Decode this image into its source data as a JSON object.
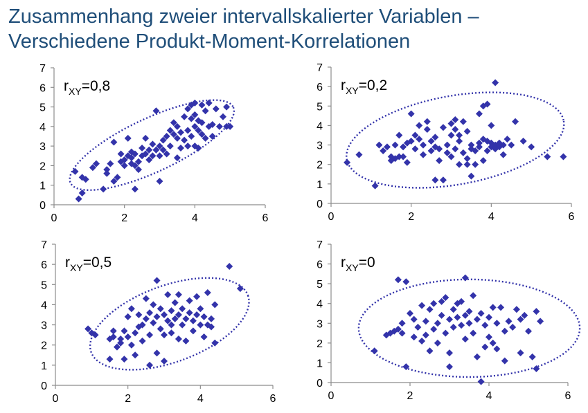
{
  "title": {
    "line1": "Zusammenhang zweier intervallskalierter Variablen –",
    "line2": "Verschiedene Produkt-Moment-Korrelationen"
  },
  "colors": {
    "marker": "#3333aa",
    "ellipse": "#3333aa",
    "title": "#1f4e79"
  },
  "chart_data": [
    {
      "type": "scatter",
      "label_prefix": "r",
      "label_sub": "XY",
      "label_value": "=0,8",
      "xlim": [
        0,
        6
      ],
      "ylim": [
        0,
        7
      ],
      "xticks": [
        0,
        2,
        4,
        6
      ],
      "yticks": [
        0,
        1,
        2,
        3,
        4,
        5,
        6,
        7
      ],
      "points": [
        [
          0.7,
          0.3
        ],
        [
          0.8,
          0.6
        ],
        [
          0.6,
          1.7
        ],
        [
          0.8,
          1.4
        ],
        [
          0.9,
          1.3
        ],
        [
          1.1,
          1.9
        ],
        [
          1.2,
          2.1
        ],
        [
          1.4,
          0.8
        ],
        [
          1.5,
          1.6
        ],
        [
          1.5,
          1.8
        ],
        [
          1.6,
          2.1
        ],
        [
          1.7,
          1.2
        ],
        [
          1.7,
          3.2
        ],
        [
          1.8,
          1.4
        ],
        [
          1.9,
          2.2
        ],
        [
          1.9,
          2.6
        ],
        [
          2.0,
          2.0
        ],
        [
          2.0,
          2.3
        ],
        [
          2.1,
          3.4
        ],
        [
          2.1,
          2.5
        ],
        [
          2.2,
          2.1
        ],
        [
          2.2,
          2.4
        ],
        [
          2.2,
          2.7
        ],
        [
          2.3,
          0.8
        ],
        [
          2.3,
          2.0
        ],
        [
          2.3,
          2.6
        ],
        [
          2.4,
          1.8
        ],
        [
          2.4,
          2.2
        ],
        [
          2.5,
          2.5
        ],
        [
          2.5,
          2.9
        ],
        [
          2.6,
          2.6
        ],
        [
          2.6,
          3.4
        ],
        [
          2.7,
          2.3
        ],
        [
          2.7,
          2.8
        ],
        [
          2.8,
          3.1
        ],
        [
          2.8,
          2.5
        ],
        [
          2.9,
          2.8
        ],
        [
          2.9,
          4.8
        ],
        [
          3.0,
          2.5
        ],
        [
          3.0,
          1.2
        ],
        [
          3.0,
          3.0
        ],
        [
          3.1,
          2.8
        ],
        [
          3.1,
          3.3
        ],
        [
          3.2,
          2.6
        ],
        [
          3.2,
          3.5
        ],
        [
          3.3,
          3.0
        ],
        [
          3.3,
          3.8
        ],
        [
          3.4,
          3.6
        ],
        [
          3.4,
          4.2
        ],
        [
          3.5,
          3.4
        ],
        [
          3.5,
          4.0
        ],
        [
          3.5,
          2.4
        ],
        [
          3.6,
          3.7
        ],
        [
          3.6,
          2.9
        ],
        [
          3.7,
          3.3
        ],
        [
          3.7,
          4.5
        ],
        [
          3.8,
          3.0
        ],
        [
          3.8,
          3.8
        ],
        [
          3.8,
          4.9
        ],
        [
          3.9,
          4.4
        ],
        [
          3.9,
          3.5
        ],
        [
          3.9,
          5.1
        ],
        [
          4.0,
          4.0
        ],
        [
          4.0,
          3.0
        ],
        [
          4.0,
          4.6
        ],
        [
          4.0,
          5.2
        ],
        [
          4.1,
          3.8
        ],
        [
          4.1,
          4.3
        ],
        [
          4.1,
          2.9
        ],
        [
          4.2,
          3.6
        ],
        [
          4.2,
          4.2
        ],
        [
          4.2,
          5.1
        ],
        [
          4.3,
          3.4
        ],
        [
          4.3,
          4.8
        ],
        [
          4.4,
          4.0
        ],
        [
          4.4,
          5.2
        ],
        [
          4.5,
          4.1
        ],
        [
          4.5,
          3.5
        ],
        [
          4.6,
          4.9
        ],
        [
          4.7,
          4.0
        ],
        [
          4.8,
          4.5
        ],
        [
          4.9,
          4.0
        ],
        [
          4.9,
          5.0
        ],
        [
          5.0,
          4.0
        ]
      ],
      "ellipse": {
        "cx": 2.78,
        "cy": 3.05,
        "rx": 2.55,
        "ry": 0.72,
        "angle_deg": -25
      }
    },
    {
      "type": "scatter",
      "label_prefix": "r",
      "label_sub": "XY",
      "label_value": "=0,2",
      "xlim": [
        0,
        6
      ],
      "ylim": [
        0,
        7
      ],
      "xticks": [
        0,
        2,
        4,
        6
      ],
      "yticks": [
        0,
        1,
        2,
        3,
        4,
        5,
        6,
        7
      ],
      "points": [
        [
          0.4,
          2.1
        ],
        [
          0.7,
          2.5
        ],
        [
          1.1,
          0.9
        ],
        [
          1.2,
          3.0
        ],
        [
          1.3,
          2.7
        ],
        [
          1.4,
          2.9
        ],
        [
          1.5,
          2.4
        ],
        [
          1.5,
          2.2
        ],
        [
          1.6,
          3.0
        ],
        [
          1.6,
          2.3
        ],
        [
          1.7,
          2.4
        ],
        [
          1.7,
          3.5
        ],
        [
          1.8,
          2.9
        ],
        [
          1.8,
          2.4
        ],
        [
          1.9,
          3.1
        ],
        [
          1.9,
          2.1
        ],
        [
          2.0,
          3.2
        ],
        [
          2.0,
          4.6
        ],
        [
          2.1,
          2.8
        ],
        [
          2.1,
          3.5
        ],
        [
          2.2,
          3.3
        ],
        [
          2.2,
          4.0
        ],
        [
          2.3,
          3.0
        ],
        [
          2.3,
          2.5
        ],
        [
          2.4,
          3.8
        ],
        [
          2.4,
          4.2
        ],
        [
          2.5,
          3.2
        ],
        [
          2.5,
          2.7
        ],
        [
          2.6,
          2.9
        ],
        [
          2.6,
          1.2
        ],
        [
          2.6,
          3.4
        ],
        [
          2.7,
          2.2
        ],
        [
          2.7,
          2.8
        ],
        [
          2.8,
          3.9
        ],
        [
          2.8,
          1.2
        ],
        [
          2.9,
          3.0
        ],
        [
          2.9,
          2.6
        ],
        [
          3.0,
          4.1
        ],
        [
          3.0,
          2.4
        ],
        [
          3.0,
          3.5
        ],
        [
          3.1,
          3.8
        ],
        [
          3.1,
          2.8
        ],
        [
          3.1,
          4.3
        ],
        [
          3.2,
          3.2
        ],
        [
          3.2,
          2.0
        ],
        [
          3.2,
          3.5
        ],
        [
          3.3,
          4.2
        ],
        [
          3.3,
          2.6
        ],
        [
          3.4,
          2.3
        ],
        [
          3.4,
          2.0
        ],
        [
          3.4,
          3.7
        ],
        [
          3.5,
          3.0
        ],
        [
          3.5,
          1.4
        ],
        [
          3.5,
          2.8
        ],
        [
          3.6,
          2.7
        ],
        [
          3.6,
          2.0
        ],
        [
          3.7,
          3.1
        ],
        [
          3.7,
          2.9
        ],
        [
          3.7,
          4.6
        ],
        [
          3.8,
          3.3
        ],
        [
          3.8,
          5.0
        ],
        [
          3.8,
          2.2
        ],
        [
          3.9,
          5.1
        ],
        [
          3.9,
          3.2
        ],
        [
          3.9,
          2.7
        ],
        [
          4.0,
          3.1
        ],
        [
          4.0,
          4.0
        ],
        [
          4.0,
          2.9
        ],
        [
          4.1,
          2.8
        ],
        [
          4.1,
          6.2
        ],
        [
          4.1,
          3.0
        ],
        [
          4.2,
          3.1
        ],
        [
          4.2,
          2.9
        ],
        [
          4.3,
          2.5
        ],
        [
          4.3,
          3.0
        ],
        [
          4.4,
          3.3
        ],
        [
          4.5,
          3.0
        ],
        [
          4.6,
          4.2
        ],
        [
          4.8,
          3.2
        ],
        [
          5.0,
          2.9
        ],
        [
          5.4,
          2.4
        ],
        [
          5.8,
          2.4
        ]
      ],
      "ellipse": {
        "cx": 3.1,
        "cy": 3.25,
        "rx": 2.75,
        "ry": 1.2,
        "angle_deg": -10
      }
    },
    {
      "type": "scatter",
      "label_prefix": "r",
      "label_sub": "XY",
      "label_value": "=0,5",
      "xlim": [
        0,
        6
      ],
      "ylim": [
        0,
        7
      ],
      "xticks": [
        0,
        2,
        4,
        6
      ],
      "yticks": [
        0,
        1,
        2,
        3,
        4,
        5,
        6,
        7
      ],
      "points": [
        [
          0.9,
          2.8
        ],
        [
          1.0,
          2.6
        ],
        [
          1.1,
          2.5
        ],
        [
          1.5,
          2.3
        ],
        [
          1.5,
          1.3
        ],
        [
          1.6,
          2.4
        ],
        [
          1.6,
          2.7
        ],
        [
          1.7,
          1.9
        ],
        [
          1.8,
          2.3
        ],
        [
          1.8,
          2.1
        ],
        [
          1.9,
          1.3
        ],
        [
          1.9,
          2.7
        ],
        [
          2.0,
          2.4
        ],
        [
          2.0,
          3.4
        ],
        [
          2.1,
          2.0
        ],
        [
          2.1,
          3.8
        ],
        [
          2.2,
          2.6
        ],
        [
          2.2,
          1.5
        ],
        [
          2.3,
          2.9
        ],
        [
          2.3,
          3.5
        ],
        [
          2.4,
          3.0
        ],
        [
          2.4,
          2.2
        ],
        [
          2.5,
          3.3
        ],
        [
          2.5,
          4.3
        ],
        [
          2.6,
          1.0
        ],
        [
          2.6,
          2.5
        ],
        [
          2.6,
          3.6
        ],
        [
          2.7,
          3.1
        ],
        [
          2.7,
          4.0
        ],
        [
          2.8,
          1.6
        ],
        [
          2.8,
          5.2
        ],
        [
          2.8,
          3.4
        ],
        [
          2.9,
          2.8
        ],
        [
          2.9,
          3.8
        ],
        [
          3.0,
          1.2
        ],
        [
          3.0,
          3.5
        ],
        [
          3.0,
          2.5
        ],
        [
          3.1,
          3.2
        ],
        [
          3.1,
          4.5
        ],
        [
          3.2,
          3.0
        ],
        [
          3.2,
          2.6
        ],
        [
          3.2,
          3.7
        ],
        [
          3.3,
          3.3
        ],
        [
          3.3,
          4.1
        ],
        [
          3.4,
          2.3
        ],
        [
          3.4,
          3.5
        ],
        [
          3.4,
          4.5
        ],
        [
          3.5,
          3.0
        ],
        [
          3.5,
          3.8
        ],
        [
          3.6,
          3.3
        ],
        [
          3.6,
          2.2
        ],
        [
          3.7,
          3.6
        ],
        [
          3.7,
          4.2
        ],
        [
          3.8,
          3.2
        ],
        [
          3.8,
          2.7
        ],
        [
          3.9,
          3.5
        ],
        [
          3.9,
          4.4
        ],
        [
          4.0,
          3.0
        ],
        [
          4.0,
          3.8
        ],
        [
          4.1,
          3.4
        ],
        [
          4.1,
          2.4
        ],
        [
          4.2,
          3.0
        ],
        [
          4.2,
          4.6
        ],
        [
          4.3,
          2.9
        ],
        [
          4.3,
          3.3
        ],
        [
          4.4,
          2.1
        ],
        [
          4.4,
          4.0
        ],
        [
          4.8,
          5.9
        ],
        [
          5.1,
          4.8
        ]
      ],
      "ellipse": {
        "cx": 3.15,
        "cy": 3.05,
        "rx": 2.3,
        "ry": 1.0,
        "angle_deg": -20
      }
    },
    {
      "type": "scatter",
      "label_prefix": "r",
      "label_sub": "XY",
      "label_value": "=0",
      "xlim": [
        0,
        6
      ],
      "ylim": [
        0,
        7
      ],
      "xticks": [
        0,
        2,
        4,
        6
      ],
      "yticks": [
        0,
        1,
        2,
        3,
        4,
        5,
        6,
        7
      ],
      "points": [
        [
          1.1,
          1.6
        ],
        [
          1.4,
          2.4
        ],
        [
          1.5,
          2.5
        ],
        [
          1.6,
          2.6
        ],
        [
          1.7,
          2.7
        ],
        [
          1.7,
          5.2
        ],
        [
          1.8,
          3.0
        ],
        [
          1.8,
          2.5
        ],
        [
          1.9,
          0.8
        ],
        [
          1.9,
          5.1
        ],
        [
          2.0,
          3.5
        ],
        [
          2.1,
          3.2
        ],
        [
          2.1,
          2.3
        ],
        [
          2.2,
          2.8
        ],
        [
          2.3,
          3.9
        ],
        [
          2.3,
          2.1
        ],
        [
          2.4,
          3.1
        ],
        [
          2.4,
          2.4
        ],
        [
          2.5,
          1.6
        ],
        [
          2.5,
          3.7
        ],
        [
          2.6,
          2.7
        ],
        [
          2.6,
          4.0
        ],
        [
          2.7,
          3.0
        ],
        [
          2.7,
          2.0
        ],
        [
          2.8,
          4.1
        ],
        [
          2.8,
          3.4
        ],
        [
          2.9,
          2.5
        ],
        [
          2.9,
          4.3
        ],
        [
          3.0,
          3.2
        ],
        [
          3.0,
          1.5
        ],
        [
          3.0,
          0.8
        ],
        [
          3.1,
          3.7
        ],
        [
          3.1,
          2.8
        ],
        [
          3.2,
          4.0
        ],
        [
          3.2,
          3.3
        ],
        [
          3.3,
          2.9
        ],
        [
          3.3,
          4.1
        ],
        [
          3.4,
          3.4
        ],
        [
          3.4,
          2.2
        ],
        [
          3.4,
          5.3
        ],
        [
          3.5,
          3.6
        ],
        [
          3.5,
          3.0
        ],
        [
          3.6,
          4.4
        ],
        [
          3.6,
          2.5
        ],
        [
          3.7,
          3.2
        ],
        [
          3.7,
          1.3
        ],
        [
          3.8,
          3.5
        ],
        [
          3.8,
          0.05
        ],
        [
          3.9,
          2.9
        ],
        [
          3.9,
          1.8
        ],
        [
          4.0,
          3.3
        ],
        [
          4.0,
          2.3
        ],
        [
          4.1,
          3.8
        ],
        [
          4.1,
          2.0
        ],
        [
          4.2,
          1.7
        ],
        [
          4.2,
          3.0
        ],
        [
          4.3,
          3.8
        ],
        [
          4.4,
          2.6
        ],
        [
          4.4,
          1.1
        ],
        [
          4.5,
          3.1
        ],
        [
          4.6,
          2.8
        ],
        [
          4.7,
          3.7
        ],
        [
          4.8,
          3.2
        ],
        [
          4.8,
          1.5
        ],
        [
          4.9,
          3.4
        ],
        [
          5.0,
          2.6
        ],
        [
          5.1,
          1.3
        ],
        [
          5.2,
          0.7
        ],
        [
          5.2,
          3.6
        ],
        [
          5.3,
          3.1
        ]
      ],
      "ellipse": {
        "cx": 3.5,
        "cy": 2.75,
        "rx": 2.8,
        "ry": 1.3,
        "angle_deg": 0
      }
    }
  ]
}
